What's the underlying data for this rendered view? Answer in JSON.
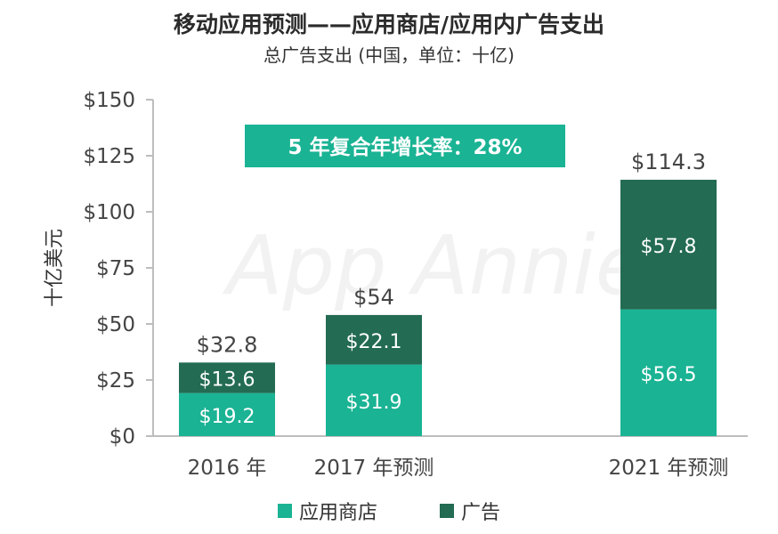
{
  "chart_data": {
    "type": "bar",
    "stacked": true,
    "title": "移动应用预测——应用商店/应用内广告支出",
    "subtitle": "总广告支出 (中国，单位：十亿)",
    "ylabel": "十亿美元",
    "ylim": [
      0,
      150
    ],
    "yticks": [
      "$0",
      "$25",
      "$50",
      "$75",
      "$100",
      "$125",
      "$150"
    ],
    "categories": [
      "2016 年",
      "2017 年预测",
      "2021 年预测"
    ],
    "series": [
      {
        "name": "应用商店",
        "values": [
          19.2,
          31.9,
          56.5
        ],
        "labels": [
          "$19.2",
          "$31.9",
          "$56.5"
        ],
        "color": "#1ab394"
      },
      {
        "name": "广告",
        "values": [
          13.6,
          22.1,
          57.8
        ],
        "labels": [
          "$13.6",
          "$22.1",
          "$57.8"
        ],
        "color": "#236b52"
      }
    ],
    "totals": [
      "$32.8",
      "$54",
      "$114.3"
    ],
    "annotation": "5 年复合年增长率：28%",
    "watermark": "App Annie",
    "legend_position": "bottom"
  },
  "colors": {
    "accent": "#1ab394",
    "dark": "#236b52"
  }
}
